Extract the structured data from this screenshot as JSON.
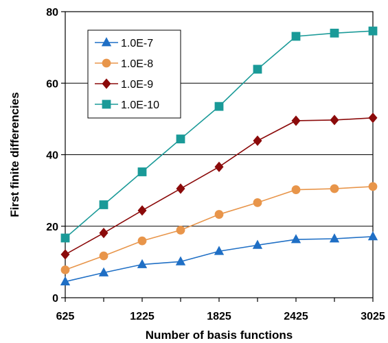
{
  "chart_data": {
    "type": "line",
    "xlabel": "Number of basis functions",
    "ylabel": "First finite differencies",
    "xlim": [
      625,
      3025
    ],
    "ylim": [
      0,
      80
    ],
    "x_ticks": [
      625,
      1225,
      1825,
      2425,
      3025
    ],
    "y_ticks": [
      0,
      20,
      40,
      60,
      80
    ],
    "grid": "horizontal",
    "legend_position": "top-left",
    "x": [
      625,
      925,
      1225,
      1525,
      1825,
      2125,
      2425,
      2725,
      3025
    ],
    "series": [
      {
        "name": "1.0E-7",
        "color": "#1F6FC5",
        "marker": "triangle",
        "values": [
          4.5,
          7.0,
          9.3,
          10.1,
          13.0,
          14.7,
          16.3,
          16.5,
          17.1
        ]
      },
      {
        "name": "1.0E-8",
        "color": "#E8954A",
        "marker": "circle",
        "values": [
          7.8,
          11.7,
          15.9,
          18.9,
          23.3,
          26.6,
          30.2,
          30.5,
          31.1
        ]
      },
      {
        "name": "1.0E-9",
        "color": "#8B0A0A",
        "marker": "diamond",
        "values": [
          12.1,
          18.1,
          24.4,
          30.5,
          36.6,
          43.9,
          49.5,
          49.7,
          50.3
        ]
      },
      {
        "name": "1.0E-10",
        "color": "#1A9A98",
        "marker": "square",
        "values": [
          16.7,
          26.0,
          35.2,
          44.4,
          53.5,
          63.9,
          73.1,
          74.0,
          74.6
        ]
      }
    ]
  }
}
